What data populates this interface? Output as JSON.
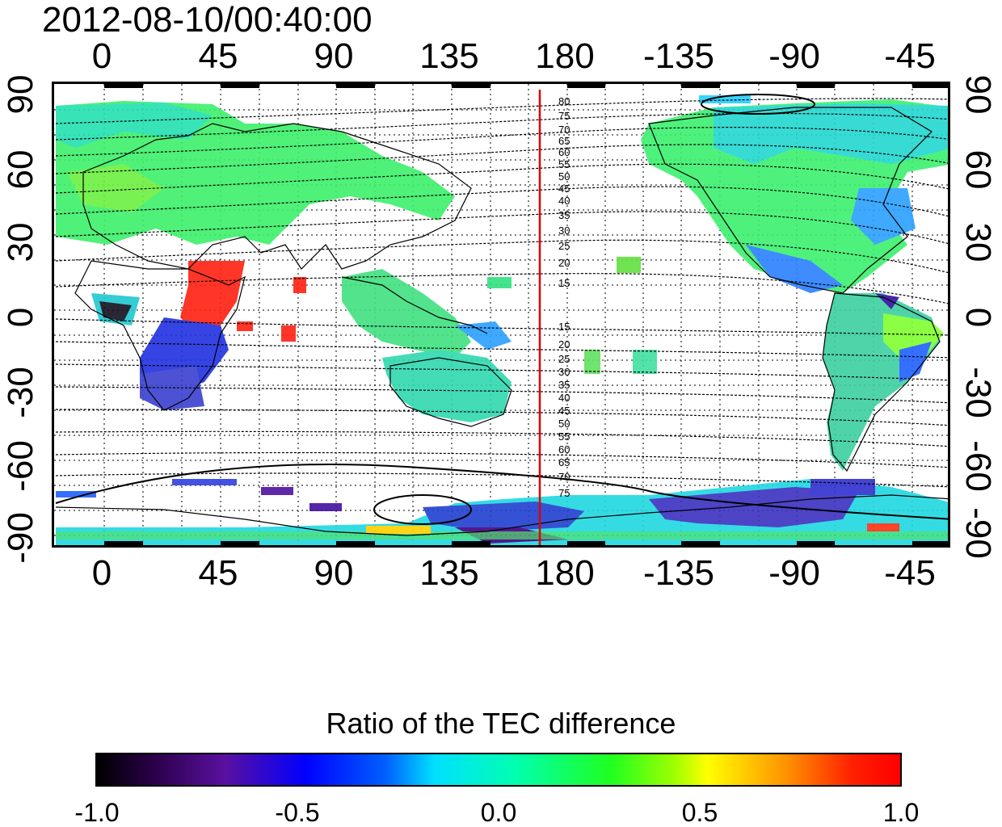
{
  "title": "2012-08-10/00:40:00",
  "map": {
    "longitude_ticks": [
      "0",
      "45",
      "90",
      "135",
      "180",
      "-135",
      "-90",
      "-45"
    ],
    "latitude_ticks_left": [
      "90",
      "60",
      "30",
      "0",
      "-30",
      "-60",
      "-90"
    ],
    "latitude_ticks_right": [
      "90",
      "60",
      "30",
      "0",
      "-30",
      "-60",
      "-90"
    ],
    "contour_labels_north": [
      "80",
      "75",
      "70",
      "65",
      "60",
      "55",
      "50",
      "45",
      "40",
      "35",
      "30",
      "25",
      "20",
      "15"
    ],
    "contour_labels_south": [
      "15",
      "20",
      "25",
      "30",
      "35",
      "40",
      "45",
      "50",
      "55",
      "60",
      "65",
      "70",
      "75"
    ],
    "meridian_marker_color": "#e00000",
    "layers": [
      "coastlines",
      "dotted graticule",
      "magnetic latitude contours",
      "TEC ratio colored cells",
      "meridian marker"
    ]
  },
  "colorbar": {
    "title": "Ratio of the TEC difference",
    "ticks": [
      "-1.0",
      "-0.5",
      "0.0",
      "0.5",
      "1.0"
    ],
    "min": -1.0,
    "max": 1.0,
    "colors": [
      "#000000",
      "#5a10a0",
      "#0000ff",
      "#00e0ff",
      "#20ff20",
      "#ffff00",
      "#ff9000",
      "#ff0000"
    ]
  }
}
